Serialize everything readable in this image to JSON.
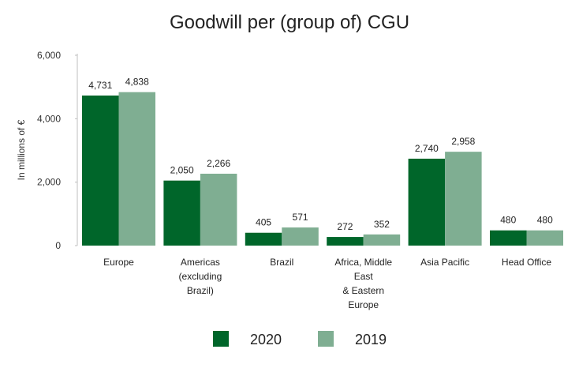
{
  "chart_data": {
    "type": "bar",
    "title": "Goodwill per (group of) CGU",
    "ylabel": "In millions of €",
    "xlabel": "",
    "ylim": [
      0,
      6000
    ],
    "yticks": [
      0,
      2000,
      4000,
      6000
    ],
    "ytick_labels": [
      "0",
      "2,000",
      "4,000",
      "6,000"
    ],
    "categories": [
      [
        "Europe"
      ],
      [
        "Americas",
        "(excluding",
        "Brazil)"
      ],
      [
        "Brazil"
      ],
      [
        "Africa, Middle",
        "East",
        "& Eastern",
        "Europe"
      ],
      [
        "Asia Pacific"
      ],
      [
        "Head Office"
      ]
    ],
    "series": [
      {
        "name": "2020",
        "color": "#00662a",
        "values": [
          4731,
          2050,
          405,
          272,
          2740,
          480
        ],
        "labels": [
          "4,731",
          "2,050",
          "405",
          "272",
          "2,740",
          "480"
        ]
      },
      {
        "name": "2019",
        "color": "#7fae92",
        "values": [
          4838,
          2266,
          571,
          352,
          2958,
          480
        ],
        "labels": [
          "4,838",
          "2,266",
          "571",
          "352",
          "2,958",
          "480"
        ]
      }
    ],
    "legend_position": "bottom-center",
    "grid": false
  }
}
